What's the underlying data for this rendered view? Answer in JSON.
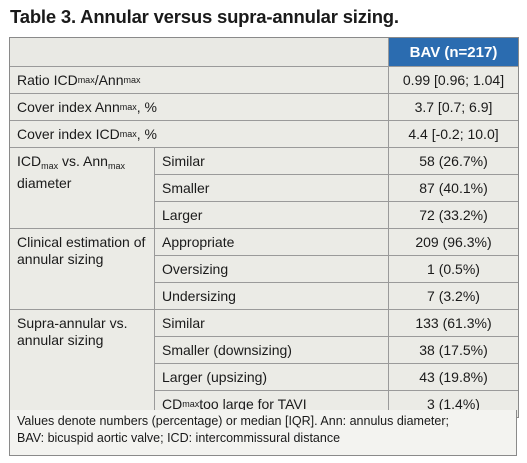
{
  "title": "Table 3. Annular versus supra-annular sizing.",
  "header": {
    "col2": "BAV (n=217)"
  },
  "rows": [
    {
      "label_parts": [
        "Ratio ICD",
        "max",
        "/Ann",
        "max"
      ],
      "value": "0.99 [0.96; 1.04]"
    },
    {
      "label_parts": [
        "Cover index Ann",
        "max",
        ", %"
      ],
      "value": "3.7 [0.7; 6.9]"
    },
    {
      "label_parts": [
        "Cover index ICD",
        "max",
        ", %"
      ],
      "value": "4.4 [-0.2; 10.0]"
    }
  ],
  "groups": [
    {
      "label_parts": [
        "ICD",
        "max",
        " vs. Ann",
        "max",
        " diameter"
      ],
      "items": [
        {
          "label": "Similar",
          "value": "58 (26.7%)"
        },
        {
          "label": "Smaller",
          "value": "87 (40.1%)"
        },
        {
          "label": "Larger",
          "value": "72 (33.2%)"
        }
      ]
    },
    {
      "label": "Clinical estimation of annular sizing",
      "items": [
        {
          "label": "Appropriate",
          "value": "209 (96.3%)"
        },
        {
          "label": "Oversizing",
          "value": "1 (0.5%)"
        },
        {
          "label": "Undersizing",
          "value": "7 (3.2%)"
        }
      ]
    },
    {
      "label": "Supra-annular vs. annular sizing",
      "items": [
        {
          "label": "Similar",
          "value": "133 (61.3%)"
        },
        {
          "label": "Smaller (downsizing)",
          "value": "38 (17.5%)"
        },
        {
          "label": "Larger (upsizing)",
          "value": "43 (19.8%)"
        },
        {
          "label_parts": [
            "CD",
            "max",
            " too large for TAVI"
          ],
          "value": "3 (1.4%)"
        }
      ]
    }
  ],
  "footnote": [
    "Values denote numbers (percentage) or median [IQR]. Ann: annulus diameter;",
    "BAV: bicuspid aortic valve; ICD: intercommissural distance"
  ],
  "colors": {
    "header_bg": "#2b6cb0",
    "cell_bg": "#ebebe6"
  }
}
